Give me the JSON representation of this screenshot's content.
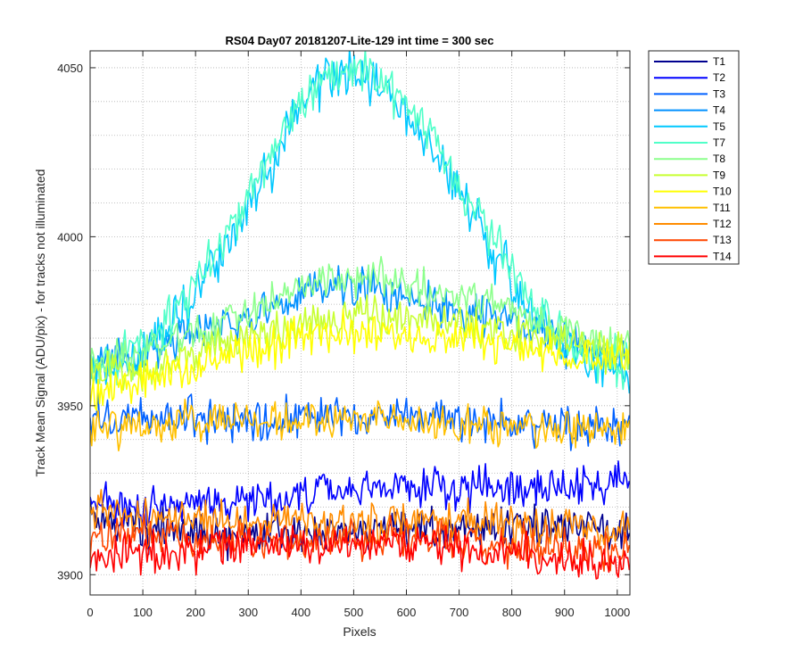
{
  "chart_data": {
    "type": "line",
    "title": "RS04 Day07 20181207-Lite-129 int time = 300 sec",
    "xlabel": "Pixels",
    "ylabel": "Track Mean Signal (ADU/pix) - for tracks not illuminated",
    "xlim": [
      0,
      1024
    ],
    "ylim": [
      3894,
      4055
    ],
    "xticks": [
      0,
      100,
      200,
      300,
      400,
      500,
      600,
      700,
      800,
      900,
      1000
    ],
    "yticks": [
      3900,
      3950,
      4000,
      4050
    ],
    "grid": true,
    "legend_position": "outside-top-right",
    "series": [
      {
        "name": "T1",
        "color": "#00008f",
        "points": [
          [
            0,
            3918
          ],
          [
            100,
            3914
          ],
          [
            200,
            3912
          ],
          [
            300,
            3912
          ],
          [
            400,
            3912
          ],
          [
            500,
            3913
          ],
          [
            600,
            3913
          ],
          [
            700,
            3913
          ],
          [
            800,
            3914
          ],
          [
            900,
            3915
          ],
          [
            1024,
            3914
          ]
        ]
      },
      {
        "name": "T2",
        "color": "#0000ff",
        "points": [
          [
            0,
            3921
          ],
          [
            100,
            3920
          ],
          [
            200,
            3921
          ],
          [
            300,
            3922
          ],
          [
            400,
            3924
          ],
          [
            500,
            3925
          ],
          [
            600,
            3926
          ],
          [
            700,
            3925
          ],
          [
            800,
            3926
          ],
          [
            900,
            3926
          ],
          [
            1024,
            3927
          ]
        ]
      },
      {
        "name": "T3",
        "color": "#0060ff",
        "points": [
          [
            0,
            3947
          ],
          [
            100,
            3946
          ],
          [
            200,
            3946
          ],
          [
            300,
            3946
          ],
          [
            400,
            3947
          ],
          [
            500,
            3947
          ],
          [
            600,
            3947
          ],
          [
            700,
            3946
          ],
          [
            800,
            3945
          ],
          [
            900,
            3944
          ],
          [
            1024,
            3944
          ]
        ]
      },
      {
        "name": "T4",
        "color": "#0090ff",
        "points": [
          [
            0,
            3961
          ],
          [
            100,
            3966
          ],
          [
            200,
            3972
          ],
          [
            300,
            3976
          ],
          [
            400,
            3983
          ],
          [
            500,
            3985
          ],
          [
            600,
            3982
          ],
          [
            700,
            3978
          ],
          [
            800,
            3975
          ],
          [
            900,
            3969
          ],
          [
            1024,
            3963
          ]
        ]
      },
      {
        "name": "T5",
        "color": "#00c8ff",
        "points": [
          [
            0,
            3958
          ],
          [
            50,
            3961
          ],
          [
            100,
            3966
          ],
          [
            150,
            3972
          ],
          [
            200,
            3982
          ],
          [
            250,
            3994
          ],
          [
            300,
            4008
          ],
          [
            350,
            4023
          ],
          [
            400,
            4038
          ],
          [
            450,
            4047
          ],
          [
            500,
            4049
          ],
          [
            550,
            4045
          ],
          [
            600,
            4036
          ],
          [
            650,
            4026
          ],
          [
            700,
            4013
          ],
          [
            750,
            4000
          ],
          [
            800,
            3987
          ],
          [
            850,
            3976
          ],
          [
            900,
            3968
          ],
          [
            950,
            3963
          ],
          [
            1024,
            3958
          ]
        ]
      },
      {
        "name": "T7",
        "color": "#50ffc8",
        "points": [
          [
            0,
            3961
          ],
          [
            50,
            3964
          ],
          [
            100,
            3969
          ],
          [
            150,
            3975
          ],
          [
            200,
            3985
          ],
          [
            250,
            3997
          ],
          [
            300,
            4011
          ],
          [
            350,
            4026
          ],
          [
            400,
            4040
          ],
          [
            450,
            4049
          ],
          [
            500,
            4051
          ],
          [
            550,
            4047
          ],
          [
            600,
            4039
          ],
          [
            650,
            4029
          ],
          [
            700,
            4016
          ],
          [
            750,
            4003
          ],
          [
            800,
            3990
          ],
          [
            850,
            3979
          ],
          [
            900,
            3971
          ],
          [
            950,
            3966
          ],
          [
            1024,
            3962
          ]
        ]
      },
      {
        "name": "T8",
        "color": "#8cff8c",
        "points": [
          [
            0,
            3961
          ],
          [
            100,
            3966
          ],
          [
            200,
            3972
          ],
          [
            300,
            3978
          ],
          [
            400,
            3985
          ],
          [
            500,
            3989
          ],
          [
            600,
            3986
          ],
          [
            700,
            3982
          ],
          [
            800,
            3978
          ],
          [
            900,
            3972
          ],
          [
            1024,
            3967
          ]
        ]
      },
      {
        "name": "T9",
        "color": "#c8ff32",
        "points": [
          [
            0,
            3958
          ],
          [
            100,
            3961
          ],
          [
            200,
            3966
          ],
          [
            300,
            3970
          ],
          [
            400,
            3974
          ],
          [
            500,
            3977
          ],
          [
            600,
            3976
          ],
          [
            700,
            3974
          ],
          [
            800,
            3971
          ],
          [
            900,
            3968
          ],
          [
            1024,
            3965
          ]
        ]
      },
      {
        "name": "T10",
        "color": "#ffff00",
        "points": [
          [
            0,
            3954
          ],
          [
            100,
            3957
          ],
          [
            200,
            3962
          ],
          [
            300,
            3966
          ],
          [
            400,
            3970
          ],
          [
            500,
            3972
          ],
          [
            600,
            3971
          ],
          [
            700,
            3970
          ],
          [
            800,
            3968
          ],
          [
            900,
            3965
          ],
          [
            1024,
            3962
          ]
        ]
      },
      {
        "name": "T11",
        "color": "#ffc000",
        "points": [
          [
            0,
            3944
          ],
          [
            100,
            3944
          ],
          [
            200,
            3945
          ],
          [
            300,
            3946
          ],
          [
            400,
            3946
          ],
          [
            500,
            3946
          ],
          [
            600,
            3946
          ],
          [
            700,
            3945
          ],
          [
            800,
            3944
          ],
          [
            900,
            3943
          ],
          [
            1024,
            3943
          ]
        ]
      },
      {
        "name": "T12",
        "color": "#ff8c00",
        "points": [
          [
            0,
            3918
          ],
          [
            100,
            3917
          ],
          [
            200,
            3917
          ],
          [
            300,
            3916
          ],
          [
            400,
            3916
          ],
          [
            500,
            3916
          ],
          [
            600,
            3916
          ],
          [
            700,
            3916
          ],
          [
            800,
            3915
          ],
          [
            900,
            3914
          ],
          [
            1024,
            3914
          ]
        ]
      },
      {
        "name": "T13",
        "color": "#ff4600",
        "points": [
          [
            0,
            3911
          ],
          [
            100,
            3911
          ],
          [
            200,
            3910
          ],
          [
            300,
            3910
          ],
          [
            400,
            3910
          ],
          [
            500,
            3910
          ],
          [
            600,
            3910
          ],
          [
            700,
            3910
          ],
          [
            800,
            3909
          ],
          [
            900,
            3908
          ],
          [
            1024,
            3907
          ]
        ]
      },
      {
        "name": "T14",
        "color": "#ff0000",
        "points": [
          [
            0,
            3905
          ],
          [
            100,
            3906
          ],
          [
            200,
            3907
          ],
          [
            300,
            3908
          ],
          [
            400,
            3909
          ],
          [
            500,
            3909
          ],
          [
            600,
            3909
          ],
          [
            700,
            3908
          ],
          [
            800,
            3906
          ],
          [
            900,
            3904
          ],
          [
            1024,
            3903
          ]
        ]
      }
    ]
  }
}
